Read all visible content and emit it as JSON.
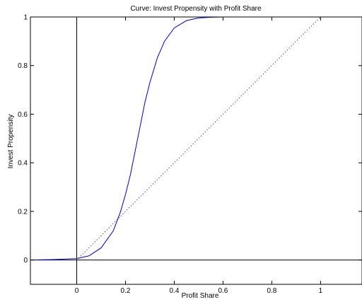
{
  "chart_data": {
    "type": "line",
    "title": "Curve: Invest Propensity with Profit Share",
    "xlabel": "Profit Share",
    "ylabel": "Invest Propensity",
    "xlim": [
      -0.19,
      1.17
    ],
    "ylim": [
      -0.1,
      1.0
    ],
    "xticks": [
      0,
      0.2,
      0.4,
      0.6,
      0.8,
      1
    ],
    "xtick_labels": [
      "0",
      "0.2",
      "0.4",
      "0.6",
      "0.8",
      "1"
    ],
    "yticks": [
      0,
      0.2,
      0.4,
      0.6,
      0.8,
      1
    ],
    "ytick_labels": [
      "0",
      "0.2",
      "0.4",
      "0.6",
      "0.8",
      "1"
    ],
    "grid": false,
    "reference_lines": {
      "horizontal_y": 0,
      "vertical_x": 0
    },
    "series": [
      {
        "style": "solid",
        "color": "#0000cc",
        "x": [
          -0.19,
          -0.1,
          0.0,
          0.05,
          0.1,
          0.15,
          0.18,
          0.2,
          0.22,
          0.25,
          0.28,
          0.3,
          0.33,
          0.36,
          0.4,
          0.45,
          0.5,
          0.55,
          0.6,
          0.7,
          0.8,
          0.9,
          1.0,
          1.17
        ],
        "y": [
          0.0,
          0.002,
          0.006,
          0.017,
          0.05,
          0.12,
          0.2,
          0.27,
          0.35,
          0.5,
          0.65,
          0.73,
          0.83,
          0.9,
          0.955,
          0.985,
          0.996,
          0.999,
          1.0,
          1.0,
          1.0,
          1.0,
          1.0,
          1.0
        ]
      },
      {
        "style": "dotted",
        "color": "#000000",
        "x": [
          0,
          1
        ],
        "y": [
          0,
          1
        ]
      }
    ]
  }
}
